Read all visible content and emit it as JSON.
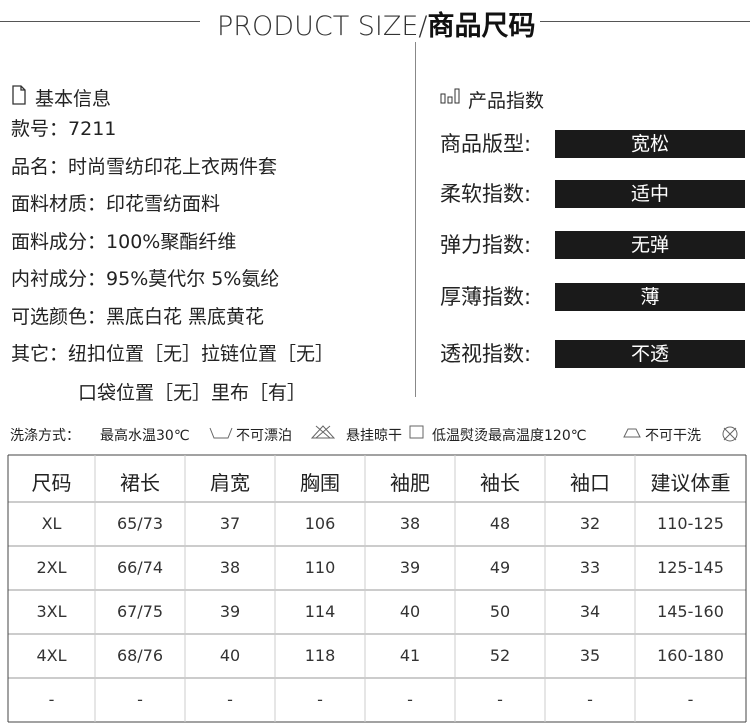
{
  "header": {
    "title_en": "PRODUCT SIZE/",
    "title_cn": "商品尺码"
  },
  "basic_info": {
    "title": "基本信息",
    "rows": [
      {
        "label": "款号：",
        "value": "7211"
      },
      {
        "label": "品名：",
        "value": "时尚雪纺印花上衣两件套"
      },
      {
        "label": "面料材质：",
        "value": "印花雪纺面料"
      },
      {
        "label": "面料成分：",
        "value": "100%聚酯纤维"
      },
      {
        "label": "内衬成分：",
        "value": "95%莫代尔 5%氨纶"
      },
      {
        "label": "可选颜色：",
        "value": "黑底白花 黑底黄花"
      },
      {
        "label": "其它：",
        "value": "纽扣位置［无］拉链位置［无］"
      }
    ],
    "continuation": "口袋位置［无］里布［有］"
  },
  "index": {
    "title": "产品指数",
    "rows": [
      {
        "label": "商品版型:",
        "value": "宽松"
      },
      {
        "label": "柔软指数:",
        "value": "适中"
      },
      {
        "label": "弹力指数:",
        "value": "无弹"
      },
      {
        "label": "厚薄指数:",
        "value": "薄"
      },
      {
        "label": "透视指数:",
        "value": "不透"
      }
    ]
  },
  "wash": {
    "label": "洗涤方式：",
    "items": [
      "最高水温30℃",
      "不可漂泊",
      "悬挂晾干",
      "低温熨烫最高温度120℃",
      "不可干洗"
    ]
  },
  "table": {
    "headers": [
      "尺码",
      "裙长",
      "肩宽",
      "胸围",
      "袖肥",
      "袖长",
      "袖口",
      "建议体重"
    ],
    "rows": [
      [
        "XL",
        "65/73",
        "37",
        "106",
        "38",
        "48",
        "32",
        "110-125"
      ],
      [
        "2XL",
        "66/74",
        "38",
        "110",
        "39",
        "49",
        "33",
        "125-145"
      ],
      [
        "3XL",
        "67/75",
        "39",
        "114",
        "40",
        "50",
        "34",
        "145-160"
      ],
      [
        "4XL",
        "68/76",
        "40",
        "118",
        "41",
        "52",
        "35",
        "160-180"
      ],
      [
        "-",
        "-",
        "-",
        "-",
        "-",
        "-",
        "-",
        "-"
      ]
    ]
  }
}
